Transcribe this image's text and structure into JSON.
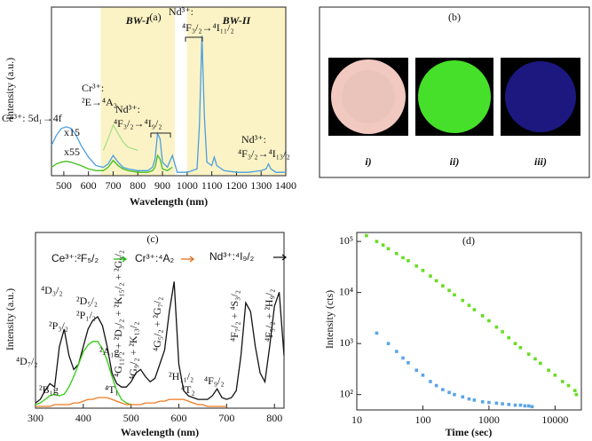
{
  "chart_data": [
    {
      "type": "line",
      "label": "(a)",
      "xlabel": "Wavelength (nm)",
      "ylabel": "Intensity (a.u.)",
      "xlim": [
        450,
        1400
      ],
      "xticks": [
        500,
        600,
        700,
        800,
        900,
        1000,
        1100,
        1200,
        1300,
        1400
      ],
      "ylim": [
        0,
        1
      ],
      "regions": [
        {
          "label": "BW-I",
          "range": [
            650,
            950
          ],
          "color": "#fbf3c6"
        },
        {
          "label": "BW-II",
          "range": [
            1000,
            1400
          ],
          "color": "#fbf3c6"
        }
      ],
      "x": [
        450,
        470,
        490,
        510,
        530,
        550,
        570,
        600,
        630,
        660,
        680,
        700,
        720,
        740,
        760,
        800,
        840,
        860,
        870,
        880,
        890,
        900,
        920,
        940,
        960,
        1000,
        1040,
        1050,
        1060,
        1070,
        1080,
        1100,
        1110,
        1120,
        1150,
        1200,
        1250,
        1300,
        1320,
        1330,
        1340,
        1360,
        1400
      ],
      "series": [
        {
          "color": "#4a9fe0",
          "values": [
            0.18,
            0.24,
            0.28,
            0.29,
            0.28,
            0.24,
            0.18,
            0.11,
            0.06,
            0.05,
            0.07,
            0.12,
            0.08,
            0.05,
            0.04,
            0.03,
            0.03,
            0.05,
            0.1,
            0.25,
            0.22,
            0.08,
            0.05,
            0.12,
            0.02,
            0.02,
            0.04,
            0.3,
            0.83,
            0.35,
            0.08,
            0.06,
            0.11,
            0.06,
            0.03,
            0.02,
            0.02,
            0.03,
            0.04,
            0.07,
            0.04,
            0.02,
            0.02
          ]
        },
        {
          "color": "#44c01c",
          "values": [
            0.05,
            0.07,
            0.08,
            0.085,
            0.08,
            0.07,
            0.06,
            0.04,
            0.03,
            0.03,
            0.05,
            0.09,
            0.06,
            0.04,
            0.03,
            0.02,
            0.02,
            0.03,
            0.05,
            0.12,
            0.1,
            0.04,
            0.03,
            0.05,
            null,
            null,
            null,
            null,
            null,
            null,
            null,
            null,
            null,
            null,
            null,
            null,
            null,
            null,
            null,
            null,
            null,
            null,
            null
          ]
        },
        {
          "color": "#a8e08a",
          "values": [
            null,
            null,
            null,
            null,
            null,
            null,
            null,
            null,
            null,
            0.15,
            0.22,
            0.3,
            0.25,
            0.2,
            0.17,
            0.15,
            null,
            null,
            null,
            null,
            null,
            null,
            null,
            null,
            null,
            null,
            null,
            null,
            null,
            null,
            null,
            null,
            null,
            null,
            null,
            null,
            null,
            null,
            null,
            null,
            null,
            null,
            null
          ]
        }
      ],
      "annotations": [
        "Nd³⁺:",
        "⁴F₃/₂→⁴I₁₁/₂",
        "Cr³⁺:",
        "²E→⁴A₂",
        "Nd³⁺:",
        "⁴F₃/₂→⁴I₉/₂",
        "Ce³⁺: 5d₁→4f",
        "x15",
        "x55",
        "Nd³⁺:",
        "⁴F₃/₂→⁴I₁₃/₂"
      ]
    },
    {
      "type": "line",
      "label": "(c)",
      "xlabel": "Wavelength (nm)",
      "ylabel": "Intensity (a.u.)",
      "xlim": [
        300,
        820
      ],
      "xticks": [
        300,
        400,
        500,
        600,
        700,
        800
      ],
      "ylim": [
        0,
        1
      ],
      "x": [
        300,
        310,
        320,
        330,
        340,
        350,
        360,
        370,
        380,
        390,
        400,
        410,
        420,
        430,
        440,
        450,
        460,
        470,
        480,
        490,
        500,
        510,
        520,
        530,
        540,
        550,
        560,
        570,
        580,
        590,
        600,
        610,
        620,
        630,
        640,
        650,
        660,
        670,
        680,
        690,
        700,
        710,
        720,
        730,
        740,
        750,
        760,
        770,
        780,
        790,
        800,
        810,
        820
      ],
      "series": [
        {
          "color": "#111111",
          "values": [
            0.03,
            0.05,
            0.1,
            0.14,
            0.12,
            0.35,
            0.45,
            0.3,
            0.22,
            0.25,
            0.35,
            0.45,
            0.5,
            0.52,
            0.47,
            0.35,
            0.2,
            0.14,
            0.12,
            0.12,
            0.15,
            0.2,
            0.22,
            0.18,
            0.15,
            0.17,
            0.25,
            0.33,
            0.55,
            0.72,
            0.25,
            0.1,
            0.07,
            0.06,
            0.05,
            0.05,
            0.05,
            0.07,
            0.11,
            0.06,
            0.05,
            0.06,
            0.1,
            0.3,
            0.6,
            0.55,
            0.35,
            0.2,
            0.15,
            0.35,
            0.58,
            0.66,
            0.3
          ]
        },
        {
          "color": "#33cc11",
          "values": [
            0.02,
            0.03,
            0.05,
            0.07,
            0.08,
            0.07,
            0.08,
            0.12,
            0.18,
            0.25,
            0.32,
            0.36,
            0.38,
            0.38,
            0.34,
            0.27,
            0.18,
            0.1,
            0.05,
            0.03,
            0.02,
            null,
            null,
            null,
            null,
            null,
            null,
            null,
            null,
            null,
            null,
            null,
            null,
            null,
            null,
            null,
            null,
            null,
            null,
            null,
            null,
            null,
            null,
            null,
            null,
            null,
            null,
            null,
            null,
            null,
            null,
            null,
            null
          ]
        },
        {
          "color": "#ee7a22",
          "values": [
            0.01,
            0.01,
            0.01,
            0.01,
            0.02,
            0.02,
            0.02,
            0.02,
            0.03,
            0.03,
            0.04,
            0.05,
            0.05,
            0.06,
            0.06,
            0.06,
            0.05,
            0.04,
            0.03,
            0.02,
            0.02,
            0.02,
            0.02,
            0.03,
            0.03,
            0.03,
            0.04,
            0.04,
            0.05,
            0.05,
            0.05,
            0.05,
            0.04,
            0.03,
            0.02,
            0.02,
            0.01,
            0.01,
            0.01,
            0.01,
            0.01,
            null,
            null,
            null,
            null,
            null,
            null,
            null,
            null,
            null,
            null,
            null,
            null
          ]
        }
      ],
      "annotations": [
        "Ce³⁺:²F₅/₂",
        "Cr³⁺:⁴A₂",
        "Nd³⁺:⁴I₉/₂",
        "⁴D₇/₂",
        "⁴D₃/₂",
        "²P₃/₂",
        "²D₅/₂",
        "²P₁/₂",
        "⁴G₁₁/₂ + ²D₃/₂ + ²K₁₅/₂ + ²G₉/₂",
        "⁴G₉/₂ + ²K₁₃/₂",
        "⁴G₅/₂ + ²G₇/₂",
        "²H₁₁/₂",
        "⁴F₉/₂",
        "⁴F₇/₂ + ⁴S₃/₂",
        "⁴F₅/₂ + ²H₉/₂",
        "²A₁g",
        "²B₁g",
        "⁴T₁",
        "⁴T₂"
      ]
    },
    {
      "type": "scatter",
      "label": "(d)",
      "xlabel": "Time (sec)",
      "ylabel": "Intensity (cts)",
      "xlog": true,
      "ylog": true,
      "xlim": [
        10,
        25000
      ],
      "xticks": [
        10,
        100,
        1000,
        10000
      ],
      "ylim": [
        50,
        150000
      ],
      "yticks": [
        {
          "value": 100,
          "label": "10²"
        },
        {
          "value": 1000,
          "label": "10³"
        },
        {
          "value": 10000,
          "label": "10⁴"
        },
        {
          "value": 100000,
          "label": "10⁵"
        }
      ],
      "series": [
        {
          "color": "#66dd22",
          "x": [
            14,
            20,
            25,
            30,
            40,
            50,
            60,
            80,
            100,
            130,
            160,
            200,
            250,
            300,
            400,
            500,
            600,
            800,
            1000,
            1300,
            1600,
            2000,
            2500,
            3000,
            4000,
            5000,
            6000,
            8000,
            10000,
            13000,
            16000,
            20000,
            21000
          ],
          "values": [
            130000,
            100000,
            85000,
            72000,
            58000,
            48000,
            42000,
            33000,
            27000,
            21000,
            17000,
            13500,
            11000,
            9000,
            7000,
            5600,
            4600,
            3500,
            2800,
            2100,
            1700,
            1300,
            1000,
            830,
            620,
            500,
            410,
            300,
            240,
            180,
            150,
            120,
            100
          ]
        },
        {
          "color": "#5aa5e6",
          "x": [
            20,
            30,
            40,
            50,
            60,
            80,
            100,
            130,
            160,
            200,
            250,
            300,
            400,
            500,
            600,
            800,
            1000,
            1300,
            1600,
            2000,
            2500,
            3000,
            3500,
            4000,
            4500
          ],
          "values": [
            1600,
            1000,
            700,
            520,
            420,
            300,
            240,
            180,
            150,
            125,
            110,
            100,
            90,
            82,
            78,
            72,
            70,
            68,
            66,
            64,
            62,
            62,
            60,
            60,
            58
          ]
        }
      ]
    }
  ],
  "photos": {
    "label": "(b)",
    "captions": [
      "i)",
      "ii)",
      "iii)"
    ]
  }
}
